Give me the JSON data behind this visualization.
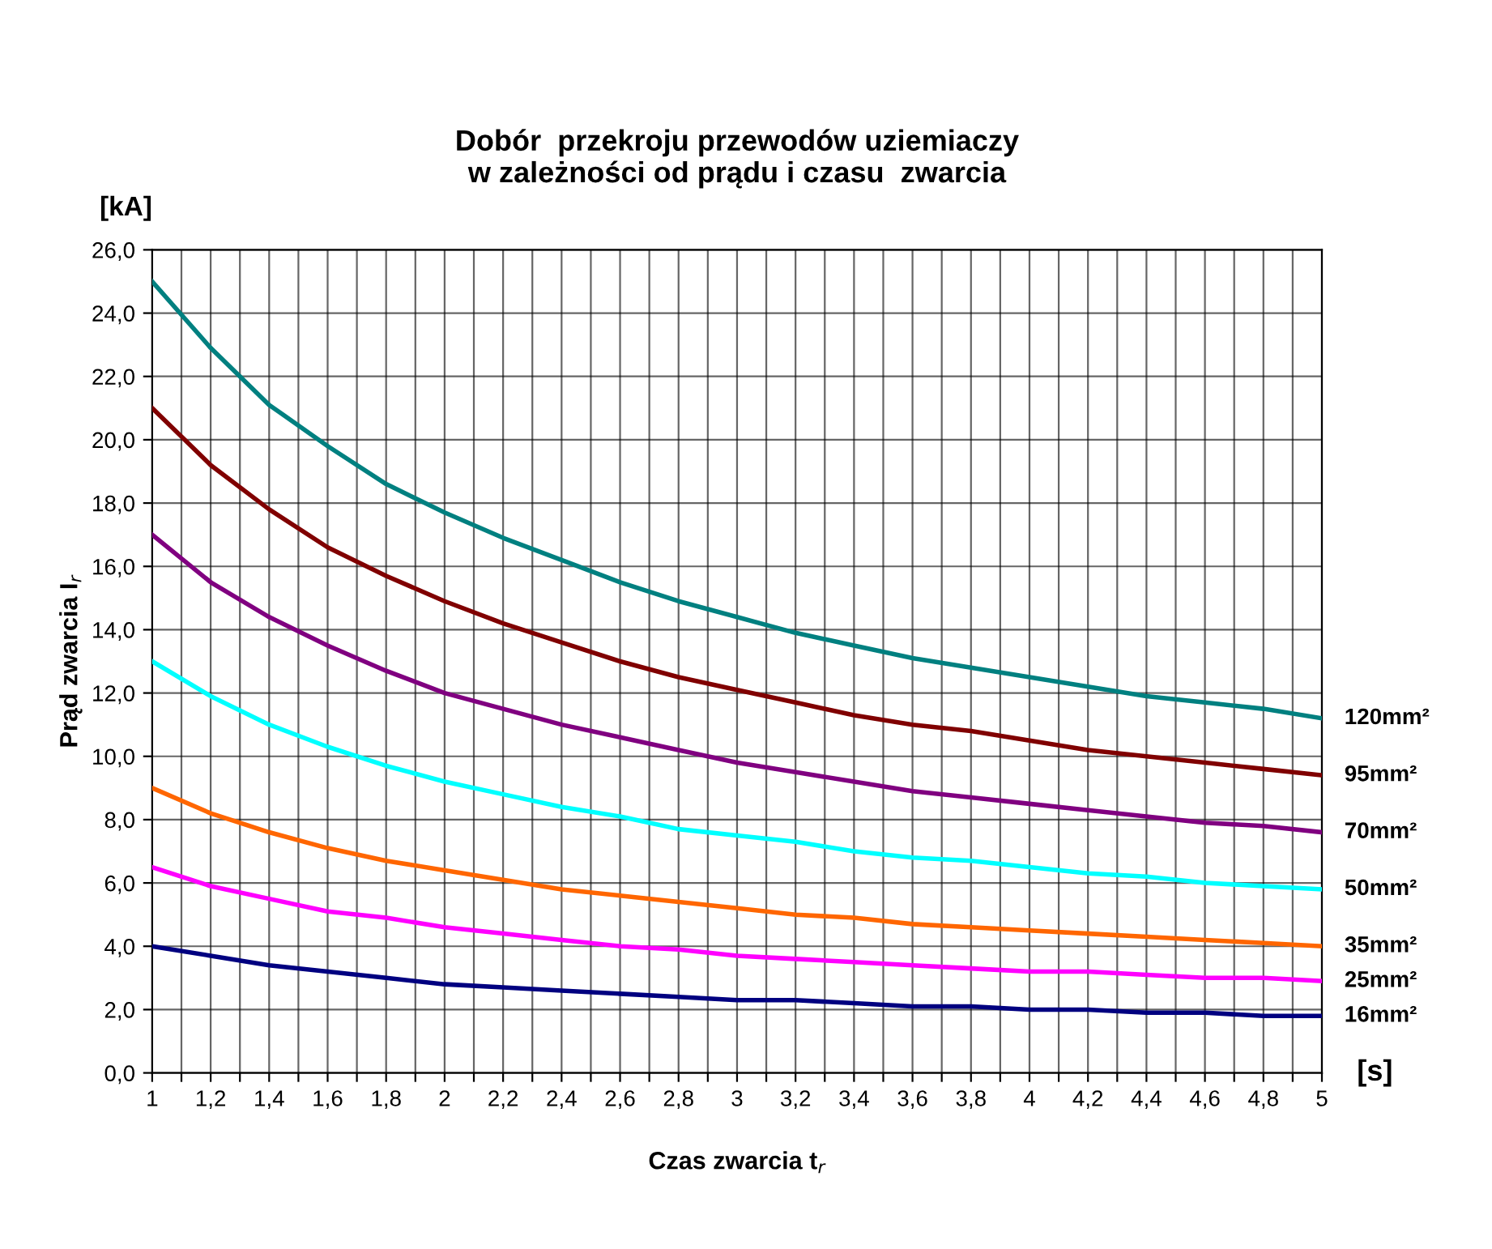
{
  "chart_data": {
    "type": "line",
    "title": "Dobór  przekroju przewodów uziemiaczy\nw zależności od prądu i czasu  zwarcia",
    "xlabel": "Czas zwarcia t$_{r}$",
    "ylabel": "Prąd zwarcia I$_{r}$",
    "annotations": [
      "[kA]",
      "[s]"
    ],
    "x": [
      1,
      1.2,
      1.4,
      1.6,
      1.8,
      2,
      2.2,
      2.4,
      2.6,
      2.8,
      3,
      3.2,
      3.4,
      3.6,
      3.8,
      4,
      4.2,
      4.4,
      4.6,
      4.8,
      5
    ],
    "series": [
      {
        "name": "120mm²",
        "color": "#008080",
        "values": [
          25.0,
          22.9,
          21.1,
          19.8,
          18.6,
          17.7,
          16.9,
          16.2,
          15.5,
          14.9,
          14.4,
          13.9,
          13.5,
          13.1,
          12.8,
          12.5,
          12.2,
          11.9,
          11.7,
          11.5,
          11.2
        ]
      },
      {
        "name": "95mm²",
        "color": "#800000",
        "values": [
          21.0,
          19.2,
          17.8,
          16.6,
          15.7,
          14.9,
          14.2,
          13.6,
          13.0,
          12.5,
          12.1,
          11.7,
          11.3,
          11.0,
          10.8,
          10.5,
          10.2,
          10.0,
          9.8,
          9.6,
          9.4
        ]
      },
      {
        "name": "70mm²",
        "color": "#800080",
        "values": [
          17.0,
          15.5,
          14.4,
          13.5,
          12.7,
          12.0,
          11.5,
          11.0,
          10.6,
          10.2,
          9.8,
          9.5,
          9.2,
          8.9,
          8.7,
          8.5,
          8.3,
          8.1,
          7.9,
          7.8,
          7.6
        ]
      },
      {
        "name": "50mm²",
        "color": "#00ffff",
        "values": [
          13.0,
          11.9,
          11.0,
          10.3,
          9.7,
          9.2,
          8.8,
          8.4,
          8.1,
          7.7,
          7.5,
          7.3,
          7.0,
          6.8,
          6.7,
          6.5,
          6.3,
          6.2,
          6.0,
          5.9,
          5.8
        ]
      },
      {
        "name": "35mm²",
        "color": "#ff6600",
        "values": [
          9.0,
          8.2,
          7.6,
          7.1,
          6.7,
          6.4,
          6.1,
          5.8,
          5.6,
          5.4,
          5.2,
          5.0,
          4.9,
          4.7,
          4.6,
          4.5,
          4.4,
          4.3,
          4.2,
          4.1,
          4.0
        ]
      },
      {
        "name": "25mm²",
        "color": "#ff00ff",
        "values": [
          6.5,
          5.9,
          5.5,
          5.1,
          4.9,
          4.6,
          4.4,
          4.2,
          4.0,
          3.9,
          3.7,
          3.6,
          3.5,
          3.4,
          3.3,
          3.2,
          3.2,
          3.1,
          3.0,
          3.0,
          2.9
        ]
      },
      {
        "name": "16mm²",
        "color": "#000080",
        "values": [
          4.0,
          3.7,
          3.4,
          3.2,
          3.0,
          2.8,
          2.7,
          2.6,
          2.5,
          2.4,
          2.3,
          2.3,
          2.2,
          2.1,
          2.1,
          2.0,
          2.0,
          1.9,
          1.9,
          1.8,
          1.8
        ]
      }
    ],
    "xlim": [
      1,
      5
    ],
    "xticks": [
      1,
      {
        "value": 1.1,
        "label": null
      },
      {
        "value": 1.2,
        "label": "1,2"
      },
      {
        "value": 1.3,
        "label": null
      },
      {
        "value": 1.4,
        "label": "1,4"
      },
      {
        "value": 1.5,
        "label": null
      },
      {
        "value": 1.6,
        "label": "1,6"
      },
      {
        "value": 1.7,
        "label": null
      },
      {
        "value": 1.8,
        "label": "1,8"
      },
      {
        "value": 1.9,
        "label": null
      },
      2,
      {
        "value": 2.1,
        "label": null
      },
      {
        "value": 2.2,
        "label": "2,2"
      },
      {
        "value": 2.3,
        "label": null
      },
      {
        "value": 2.4,
        "label": "2,4"
      },
      {
        "value": 2.5,
        "label": null
      },
      {
        "value": 2.6,
        "label": "2,6"
      },
      {
        "value": 2.7,
        "label": null
      },
      {
        "value": 2.8,
        "label": "2,8"
      },
      {
        "value": 2.9,
        "label": null
      },
      3,
      {
        "value": 3.1,
        "label": null
      },
      {
        "value": 3.2,
        "label": "3,2"
      },
      {
        "value": 3.3,
        "label": null
      },
      {
        "value": 3.4,
        "label": "3,4"
      },
      {
        "value": 3.5,
        "label": null
      },
      {
        "value": 3.6,
        "label": "3,6"
      },
      {
        "value": 3.7,
        "label": null
      },
      {
        "value": 3.8,
        "label": "3,8"
      },
      {
        "value": 3.9,
        "label": null
      },
      4,
      {
        "value": 4.1,
        "label": null
      },
      {
        "value": 4.2,
        "label": "4,2"
      },
      {
        "value": 4.3,
        "label": null
      },
      {
        "value": 4.4,
        "label": "4,4"
      },
      {
        "value": 4.5,
        "label": null
      },
      {
        "value": 4.6,
        "label": "4,6"
      },
      {
        "value": 4.7,
        "label": null
      },
      {
        "value": 4.8,
        "label": "4,8"
      },
      {
        "value": 4.9,
        "label": null
      },
      5
    ],
    "ylim": [
      0,
      26
    ],
    "yticks": [
      {
        "value": 0,
        "label": "0,0"
      },
      {
        "value": 2,
        "label": "2,0"
      },
      {
        "value": 4,
        "label": "4,0"
      },
      {
        "value": 6,
        "label": "6,0"
      },
      {
        "value": 8,
        "label": "8,0"
      },
      {
        "value": 10,
        "label": "10,0"
      },
      {
        "value": 12,
        "label": "12,0"
      },
      {
        "value": 14,
        "label": "14,0"
      },
      {
        "value": 16,
        "label": "16,0"
      },
      {
        "value": 18,
        "label": "18,0"
      },
      {
        "value": 20,
        "label": "20,0"
      },
      {
        "value": 22,
        "label": "22,0"
      },
      {
        "value": 24,
        "label": "24,0"
      },
      {
        "value": 26,
        "label": "26,0"
      }
    ],
    "grid": true,
    "legend": false,
    "line_style": "solid",
    "marker": "none"
  }
}
